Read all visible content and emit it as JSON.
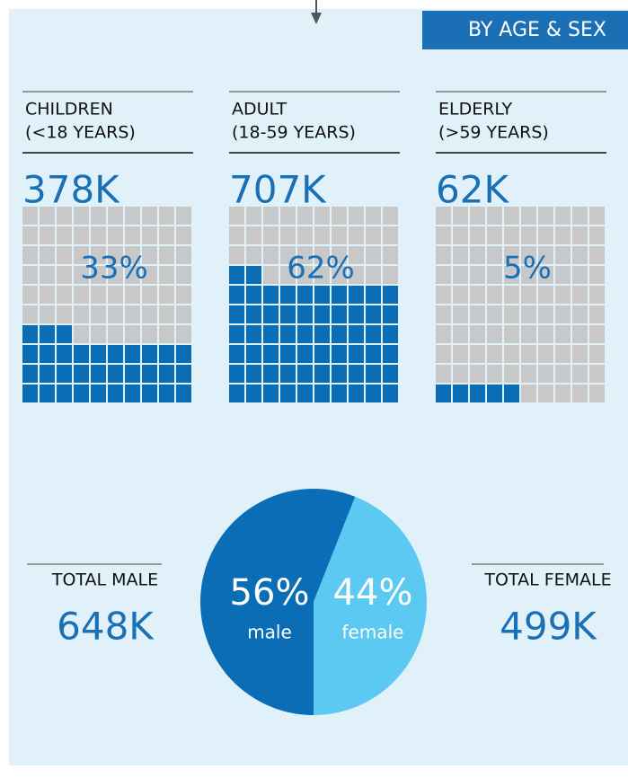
{
  "header": {
    "title": "BY AGE & SEX"
  },
  "chart_data": [
    {
      "type": "waffle",
      "title": "CHILDREN",
      "subtitle": "(<18 YEARS)",
      "total": 378000,
      "total_label": "378K",
      "values": [
        33
      ],
      "value_labels": [
        "33%"
      ],
      "color": "#0b6db5",
      "empty_color": "#c8c8c8"
    },
    {
      "type": "waffle",
      "title": "ADULT",
      "subtitle": "(18-59 YEARS)",
      "total": 707000,
      "total_label": "707K",
      "values": [
        62
      ],
      "value_labels": [
        "62%"
      ],
      "color": "#0b6db5",
      "empty_color": "#c8c8c8"
    },
    {
      "type": "waffle",
      "title": "ELDERLY",
      "subtitle": "(>59 YEARS)",
      "total": 62000,
      "total_label": "62K",
      "values": [
        5
      ],
      "value_labels": [
        "5%"
      ],
      "color": "#0b6db5",
      "empty_color": "#c8c8c8"
    },
    {
      "type": "pie",
      "categories": [
        "male",
        "female"
      ],
      "values": [
        56,
        44
      ],
      "value_labels": [
        "56%",
        "44%"
      ],
      "colors": [
        "#0b6db5",
        "#5bc9f1"
      ],
      "total_names": [
        "TOTAL MALE",
        "TOTAL FEMALE"
      ],
      "totals": [
        648000,
        499000
      ],
      "total_labels": [
        "648K",
        "499K"
      ]
    }
  ]
}
